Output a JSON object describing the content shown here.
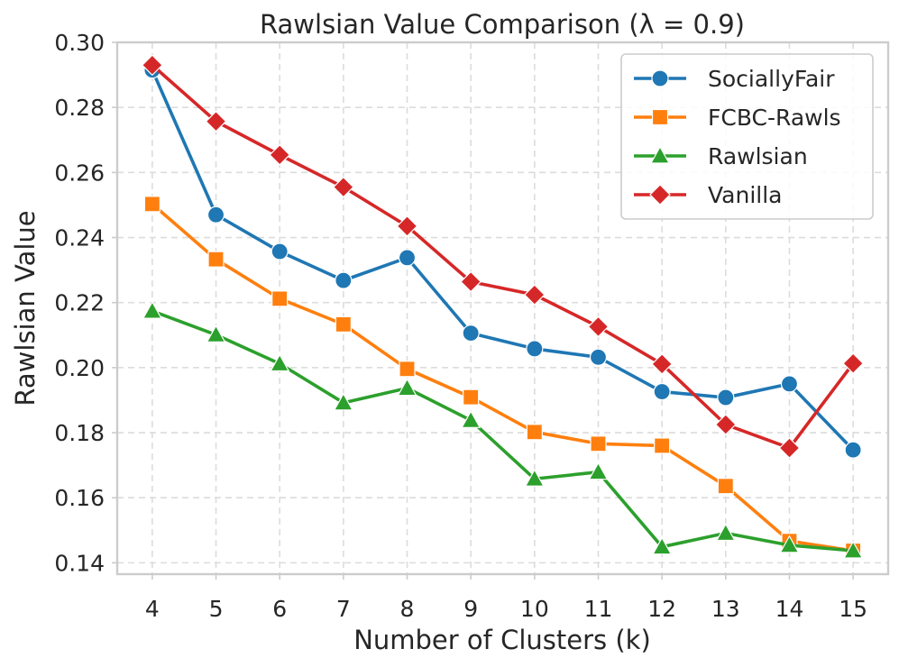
{
  "chart_data": {
    "type": "line",
    "title": "Rawlsian Value Comparison (λ = 0.9)",
    "xlabel": "Number of Clusters (k)",
    "ylabel": "Rawlsian Value",
    "x": [
      4,
      5,
      6,
      7,
      8,
      9,
      10,
      11,
      12,
      13,
      14,
      15
    ],
    "x_tick_labels": [
      "4",
      "5",
      "6",
      "7",
      "8",
      "9",
      "10",
      "11",
      "12",
      "13",
      "14",
      "15"
    ],
    "y_ticks": [
      0.14,
      0.16,
      0.18,
      0.2,
      0.22,
      0.24,
      0.26,
      0.28,
      0.3
    ],
    "y_tick_labels": [
      "0.14",
      "0.16",
      "0.18",
      "0.20",
      "0.22",
      "0.24",
      "0.26",
      "0.28",
      "0.30"
    ],
    "xlim": [
      3.45,
      15.55
    ],
    "ylim": [
      0.1365,
      0.3
    ],
    "grid": true,
    "legend_position": "top-right",
    "series": [
      {
        "name": "SociallyFair",
        "color": "#1f77b4",
        "marker": "circle",
        "values": [
          0.2915,
          0.247,
          0.2357,
          0.2268,
          0.2338,
          0.2106,
          0.2058,
          0.2032,
          0.1926,
          0.1908,
          0.195,
          0.1747
        ]
      },
      {
        "name": "FCBC-Rawls",
        "color": "#ff7f0e",
        "marker": "square",
        "values": [
          0.2503,
          0.2333,
          0.2212,
          0.2133,
          0.1996,
          0.1909,
          0.1802,
          0.1766,
          0.176,
          0.1636,
          0.1467,
          0.1437
        ]
      },
      {
        "name": "Rawlsian",
        "color": "#2ca02c",
        "marker": "triangle",
        "values": [
          0.2174,
          0.2101,
          0.2012,
          0.1892,
          0.1937,
          0.1838,
          0.1658,
          0.1679,
          0.1449,
          0.1491,
          0.1454,
          0.1437
        ]
      },
      {
        "name": "Vanilla",
        "color": "#d62728",
        "marker": "diamond",
        "values": [
          0.293,
          0.2757,
          0.2654,
          0.2555,
          0.2435,
          0.2264,
          0.2224,
          0.2126,
          0.2011,
          0.1825,
          0.1753,
          0.2013
        ]
      }
    ]
  }
}
